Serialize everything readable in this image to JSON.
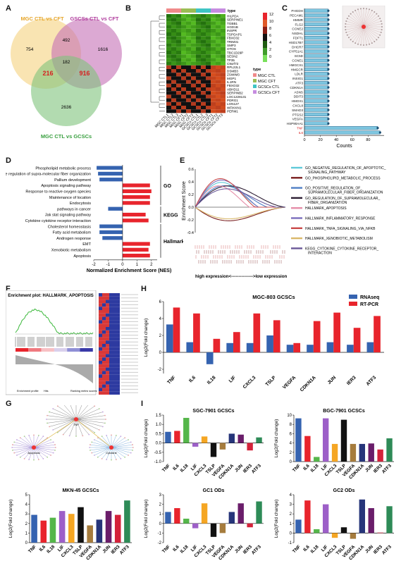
{
  "panel_labels": {
    "A": "A",
    "B": "B",
    "C": "C",
    "D": "D",
    "E": "E",
    "F": "F",
    "G": "G",
    "H": "H",
    "I": "I"
  },
  "venn": {
    "set1": "MGC CTL vs CFT",
    "set2": "GSCSs CTL vs CFT",
    "set3": "MGC CTL vs GCSCs",
    "n_only1": "754",
    "n_only2": "1616",
    "n_only3": "2636",
    "n_12": "492",
    "n_13": "216",
    "n_23": "916",
    "n_123": "182",
    "color1": "#f5d27f",
    "color2": "#c46fb6",
    "color3": "#7ec37c"
  },
  "heatmap": {
    "genes": [
      "HILPDA",
      "SERPINE1",
      "TGBB1",
      "HGD1B",
      "INSPR",
      "TSPOAP1",
      "FBXO32",
      "TRIM31",
      "SMP3",
      "OTOS",
      "TBC1D29P",
      "SESN2",
      "TP35",
      "C9orf72",
      "RPL22L1",
      "DSMB3",
      "ZSWIM3",
      "MGP1",
      "IL1RN",
      "FBXO32",
      "ABHD11",
      "SERPINB2",
      "LOC1228131",
      "PDRG1",
      "LGN127",
      "WFIKKN1",
      "PERM1"
    ],
    "samples": [
      "MGC CTL1",
      "MGC CTL2",
      "MGC CTL3",
      "MGC CFT1",
      "MGC CFT2",
      "MGC CFT3",
      "GCSCs CTL1",
      "GCSCs CTL2",
      "GCSCs CTL3",
      "GCSCs CFT1",
      "GCSCs CFT2",
      "GCSCs CFT3"
    ],
    "scale": [
      "12",
      "10",
      "8",
      "6",
      "4",
      "2",
      "0"
    ],
    "type_header": "type",
    "type_legend_title": "type",
    "types": [
      {
        "name": "MGC CTL",
        "color": "#f08a8a"
      },
      {
        "name": "MGC CFT",
        "color": "#9bbd55"
      },
      {
        "name": "GCSCs CTL",
        "color": "#3fc4c4"
      },
      {
        "name": "GCSCs CFT",
        "color": "#c68ce0"
      }
    ]
  },
  "chart_data": [
    {
      "type": "bar",
      "panel": "C",
      "orientation": "horizontal",
      "categories": [
        "PHGDH",
        "PECAM1",
        "HMMR",
        "FLG2",
        "CCNE2",
        "NSDHL",
        "FDFT1",
        "HSD17B7",
        "DHCR7",
        "CYP51A1",
        "SC5D",
        "CCNE1",
        "HMGCS1",
        "HMGCR",
        "LDLR",
        "INSIG1",
        "ATF3",
        "CDKN1A",
        "ASNS",
        "DDIT3",
        "HMOX1",
        "CXCL8",
        "SMAD3",
        "PTGS2",
        "VEGFA",
        "HSP90AA1",
        "TNF",
        "IL6"
      ],
      "values": [
        30,
        30,
        30,
        30,
        30,
        30,
        30,
        30,
        30,
        30,
        30,
        30,
        30,
        30,
        30,
        30,
        30,
        30,
        30,
        30,
        30,
        30,
        30,
        30,
        30,
        30,
        92,
        95
      ],
      "xlabel": "Counts",
      "xticks": [
        0,
        20,
        40,
        60,
        80
      ],
      "xlim": [
        0,
        100
      ]
    },
    {
      "type": "bar",
      "panel": "D",
      "orientation": "horizontal",
      "categories": [
        "Phospholipid metabolic process",
        "Positive regulation of supra-molecular fiber organization",
        "Pallium development",
        "Apoptosis signaling pathway",
        "Response to reactive oxygen species",
        "Maintenance of location",
        "Endocytosis",
        "pathways in cancer",
        "Jak stat signaling pathway",
        "Cytokine cytokine receptor interaction",
        "Cholesterol homeostasis",
        "Fatty acid metabolism",
        "Androgen response",
        "EMT",
        "Xenobiotic metabolism",
        "Apoptosis"
      ],
      "values": [
        -1.8,
        -1.7,
        -1.6,
        1.9,
        2.0,
        1.9,
        1.9,
        -1.0,
        1.6,
        1.8,
        -1.6,
        -1.6,
        -1.4,
        1.9,
        1.8,
        1.9
      ],
      "groups": [
        {
          "name": "GO",
          "start": 0,
          "end": 6
        },
        {
          "name": "KEGG",
          "start": 7,
          "end": 9
        },
        {
          "name": "Hallmark",
          "start": 10,
          "end": 15
        }
      ],
      "xlabel": "Normalized Enrichment Score (NES)",
      "xticks": [
        -2,
        -1,
        0,
        1,
        2
      ],
      "xlim": [
        -2,
        2.4
      ]
    },
    {
      "type": "line",
      "panel": "E",
      "ylabel": "Enrichment Score",
      "yticks": [
        "0.6",
        "0.4",
        "0.2",
        "0.0",
        "-0.2",
        "-0.4"
      ],
      "bottom_label": "high expression<--------------->low expression",
      "series": [
        {
          "name": "GO_NEGATIVE_REGULATION_OF_APOPTOTIC_SIGNALING_PATHWAY",
          "color": "#5ec9d8"
        },
        {
          "name": "GO_PHOSPHOLIPID_METABOLIC_PROCESS",
          "color": "#7a1f1f"
        },
        {
          "name": "GO_POSITIVE_REGULATION_OF_SUPRAMOLECULAR_FIBER_ORGANIZATION",
          "color": "#4f7fc4"
        },
        {
          "name": "GO_REGULATION_OF_SUPRAMOLECULAR_FIBER_ORGANIZATION",
          "color": "#2c1d33"
        },
        {
          "name": "HALLMARK_APOPTOSIS",
          "color": "#e58ea9"
        },
        {
          "name": "HALLMARK_INFLAMMATORY_RESPONSE",
          "color": "#7b6fbd"
        },
        {
          "name": "HALLMARK_TNFA_SIGNALING_VIA_NFKB",
          "color": "#c94a4a"
        },
        {
          "name": "HALLMARK_XENOBIOTIC_METABOLISM",
          "color": "#d9b86a"
        },
        {
          "name": "KEGG_CYTOKINE_CYTOKINE_RECEPTOR_INTERACTION",
          "color": "#6a5898"
        }
      ]
    },
    {
      "type": "bar",
      "panel": "H",
      "title": "MGC-803 GCSCs",
      "ylabel": "Log2(Fold change)",
      "categories": [
        "TNF",
        "IL6",
        "IL18",
        "LIF",
        "CXCL3",
        "TSLP",
        "VEGFA",
        "CDKN1A",
        "JUN",
        "IER3",
        "ATF3"
      ],
      "series": [
        {
          "name": "RNAseq",
          "color": "#3563b0",
          "values": [
            3.3,
            1.2,
            -1.4,
            1.1,
            1.1,
            2.0,
            0.9,
            0.9,
            1.2,
            0.9,
            1.2
          ]
        },
        {
          "name": "RT-PCR",
          "color": "#e8242c",
          "values": [
            5.3,
            4.6,
            1.6,
            2.4,
            4.6,
            3.8,
            1.1,
            3.7,
            4.7,
            2.9,
            4.3
          ]
        }
      ],
      "yticks": [
        -2,
        0,
        2,
        4,
        6
      ],
      "ylim": [
        -2.5,
        6
      ]
    },
    {
      "type": "bar",
      "panel": "I",
      "title": "SGC-7901 GCSCs",
      "ylabel": "Log2(Fold change)",
      "categories": [
        "TNF",
        "IL6",
        "IL18",
        "LIF",
        "CXCL3",
        "TSLP",
        "VEGFA",
        "CDKN1A",
        "JUN",
        "IER3",
        "ATF3"
      ],
      "values": [
        0.6,
        0.65,
        1.35,
        -0.2,
        0.35,
        -0.75,
        -0.35,
        0.5,
        0.45,
        -0.4,
        0.3
      ],
      "colors": [
        "#3563b0",
        "#e8242c",
        "#55b64a",
        "#9d5fc8",
        "#f5a623",
        "#111111",
        "#a67c3d",
        "#26357a",
        "#6a1d6a",
        "#d4223a",
        "#2e8b57"
      ],
      "yticks": [
        "-1.0",
        "-0.5",
        "0.0",
        "0.5",
        "1.0",
        "1.5"
      ],
      "ylim": [
        -1.0,
        1.5
      ]
    },
    {
      "type": "bar",
      "panel": "I",
      "title": "BGC-7901 GCSCs",
      "ylabel": "Log2(Fold change)",
      "categories": [
        "TNF",
        "IL6",
        "IL18",
        "LIF",
        "CXCL3",
        "TSLP",
        "VEGFA",
        "CDKN1A",
        "JUN",
        "IER3",
        "ATF3"
      ],
      "values": [
        9.3,
        5.5,
        1.0,
        9.3,
        3.8,
        9.0,
        3.8,
        3.8,
        3.9,
        2.6,
        5.0
      ],
      "colors": [
        "#3563b0",
        "#e8242c",
        "#55b64a",
        "#9d5fc8",
        "#f5a623",
        "#111111",
        "#a67c3d",
        "#26357a",
        "#6a1d6a",
        "#d4223a",
        "#2e8b57"
      ],
      "yticks": [
        0,
        2,
        4,
        6,
        8,
        10
      ],
      "ylim": [
        0,
        10
      ]
    },
    {
      "type": "bar",
      "panel": "I",
      "title": "MKN-45 GCSCs",
      "ylabel": "Log2(Fold change)",
      "categories": [
        "TNF",
        "IL6",
        "IL18",
        "LIF",
        "CXCL3",
        "TSLP",
        "VEGFA",
        "CDKN1A",
        "JUN",
        "IER3",
        "ATF3"
      ],
      "values": [
        2.9,
        2.3,
        2.6,
        3.3,
        3.0,
        3.7,
        1.8,
        2.4,
        3.3,
        2.9,
        4.4
      ],
      "colors": [
        "#3563b0",
        "#e8242c",
        "#55b64a",
        "#9d5fc8",
        "#f5a623",
        "#111111",
        "#a67c3d",
        "#26357a",
        "#6a1d6a",
        "#d4223a",
        "#2e8b57"
      ],
      "yticks": [
        0,
        1,
        2,
        3,
        4,
        5
      ],
      "ylim": [
        0,
        5
      ]
    },
    {
      "type": "bar",
      "panel": "I",
      "title": "GC1 ODs",
      "ylabel": "Log2(Fold change)",
      "categories": [
        "TNF",
        "IL6",
        "IL18",
        "LIF",
        "CXCL3",
        "TSLP",
        "VEGFA",
        "CDKN1A",
        "JUN",
        "IER3",
        "ATF3"
      ],
      "values": [
        1.2,
        1.6,
        0.5,
        -0.5,
        2.1,
        -1.4,
        -1.0,
        1.2,
        2.1,
        -0.4,
        2.3
      ],
      "colors": [
        "#3563b0",
        "#e8242c",
        "#55b64a",
        "#9d5fc8",
        "#f5a623",
        "#111111",
        "#a67c3d",
        "#26357a",
        "#6a1d6a",
        "#d4223a",
        "#2e8b57"
      ],
      "yticks": [
        -2,
        -1,
        0,
        1,
        2,
        3
      ],
      "ylim": [
        -2,
        3
      ]
    },
    {
      "type": "bar",
      "panel": "I",
      "title": "GC2 ODs",
      "ylabel": "Log2(Fold change)",
      "categories": [
        "TNF",
        "IL6",
        "IL18",
        "LIF",
        "CXCL3",
        "TSLP",
        "VEGFA",
        "CDKN1A",
        "JUN",
        "IER3",
        "ATF3"
      ],
      "values": [
        1.4,
        3.4,
        0.4,
        3.0,
        -0.5,
        0.6,
        -0.6,
        3.5,
        2.6,
        0.05,
        2.8
      ],
      "colors": [
        "#3563b0",
        "#e8242c",
        "#55b64a",
        "#9d5fc8",
        "#f5a623",
        "#111111",
        "#a67c3d",
        "#26357a",
        "#6a1d6a",
        "#d4223a",
        "#2e8b57"
      ],
      "yticks": [
        -1,
        0,
        1,
        2,
        3,
        4
      ],
      "ylim": [
        -1,
        4
      ]
    }
  ],
  "gsea_f": {
    "title": "Enrichment plot: HALLMARK_APOPTOSIS",
    "legend_items": [
      "Enrichment profile",
      "Hits",
      "Ranking metric scores"
    ]
  },
  "network_g": {
    "hubs": [
      "TNF",
      "Apoptosis",
      "Cytokine"
    ]
  }
}
